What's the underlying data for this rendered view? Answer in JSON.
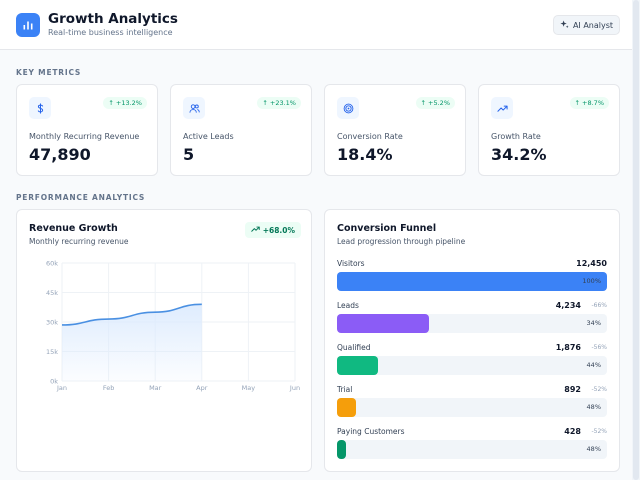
{
  "header": {
    "title": "Growth Analytics",
    "subtitle": "Real-time business intelligence",
    "ai_button": "AI Analyst"
  },
  "sections": {
    "key_metrics": "KEY METRICS",
    "performance": "PERFORMANCE ANALYTICS"
  },
  "metrics": [
    {
      "icon": "dollar-icon",
      "change": "+13.2%",
      "label": "Monthly Recurring Revenue",
      "value": "47,890"
    },
    {
      "icon": "users-icon",
      "change": "+23.1%",
      "label": "Active Leads",
      "value": "5"
    },
    {
      "icon": "target-icon",
      "change": "+5.2%",
      "label": "Conversion Rate",
      "value": "18.4%"
    },
    {
      "icon": "trending-up-icon",
      "change": "+8.7%",
      "label": "Growth Rate",
      "value": "34.2%"
    }
  ],
  "revenue": {
    "title": "Revenue Growth",
    "subtitle": "Monthly recurring revenue",
    "badge": "+68.0%"
  },
  "chart_data": {
    "type": "area",
    "title": "Revenue Growth",
    "subtitle": "Monthly recurring revenue",
    "categories": [
      "Jan",
      "Feb",
      "Mar",
      "Apr",
      "May",
      "Jun"
    ],
    "values": [
      28500,
      31500,
      35000,
      39000,
      null,
      null
    ],
    "y_ticks": [
      0,
      15000,
      30000,
      45000,
      60000
    ],
    "y_tick_labels": [
      "0k",
      "15k",
      "30k",
      "45k",
      "60k"
    ],
    "ylim": [
      0,
      60000
    ],
    "xlabel": "",
    "ylabel": "",
    "grid": true,
    "colors": {
      "line": "#4a90e2",
      "fill": "#dbeafe"
    }
  },
  "funnel": {
    "title": "Conversion Funnel",
    "subtitle": "Lead progression through pipeline",
    "stages": [
      {
        "name": "Visitors",
        "count": "12,450",
        "drop": "",
        "pct": "100%",
        "fraction": 1.0,
        "color": "#3b82f6"
      },
      {
        "name": "Leads",
        "count": "4,234",
        "drop": "-66%",
        "pct": "34%",
        "fraction": 0.34,
        "color": "#8b5cf6"
      },
      {
        "name": "Qualified",
        "count": "1,876",
        "drop": "-56%",
        "pct": "44%",
        "fraction": 0.15,
        "color": "#10b981"
      },
      {
        "name": "Trial",
        "count": "892",
        "drop": "-52%",
        "pct": "48%",
        "fraction": 0.072,
        "color": "#f59e0b"
      },
      {
        "name": "Paying Customers",
        "count": "428",
        "drop": "-52%",
        "pct": "48%",
        "fraction": 0.034,
        "color": "#059669"
      }
    ]
  }
}
